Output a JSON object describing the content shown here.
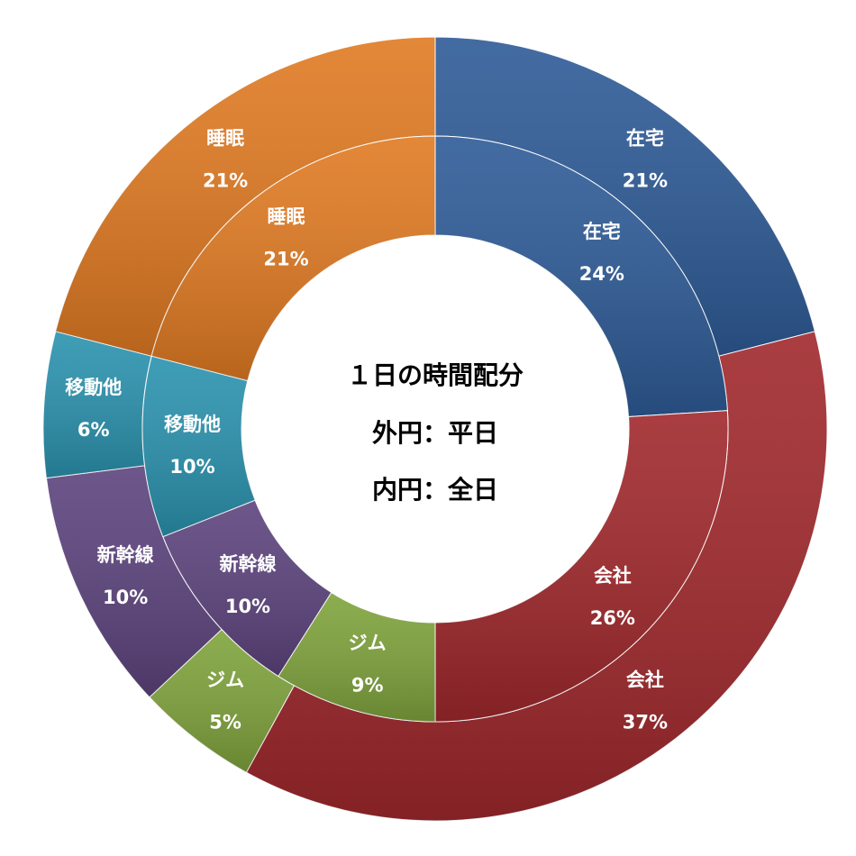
{
  "chart_data": {
    "type": "donut",
    "center_text": [
      "１日の時間配分",
      "外円：平日",
      "内円：全日"
    ],
    "series": [
      {
        "name": "外円：平日",
        "slices": [
          {
            "label": "在宅",
            "value": 21,
            "percent_text": "21%",
            "color": "#2E5B97"
          },
          {
            "label": "会社",
            "value": 37,
            "percent_text": "37%",
            "color": "#A0282C"
          },
          {
            "label": "ジム",
            "value": 5,
            "percent_text": "5%",
            "color": "#7FA33C"
          },
          {
            "label": "新幹線",
            "value": 10,
            "percent_text": "10%",
            "color": "#5C437D"
          },
          {
            "label": "移動他",
            "value": 6,
            "percent_text": "6%",
            "color": "#2A92AE"
          },
          {
            "label": "睡眠",
            "value": 21,
            "percent_text": "21%",
            "color": "#E07A22"
          }
        ]
      },
      {
        "name": "内円：全日",
        "slices": [
          {
            "label": "在宅",
            "value": 24,
            "percent_text": "24%",
            "color": "#2E5B97"
          },
          {
            "label": "会社",
            "value": 26,
            "percent_text": "26%",
            "color": "#A0282C"
          },
          {
            "label": "ジム",
            "value": 9,
            "percent_text": "9%",
            "color": "#7FA33C"
          },
          {
            "label": "新幹線",
            "value": 10,
            "percent_text": "10%",
            "color": "#5C437D"
          },
          {
            "label": "移動他",
            "value": 10,
            "percent_text": "10%",
            "color": "#2A92AE"
          },
          {
            "label": "睡眠",
            "value": 21,
            "percent_text": "21%",
            "color": "#E07A22"
          }
        ]
      }
    ]
  }
}
